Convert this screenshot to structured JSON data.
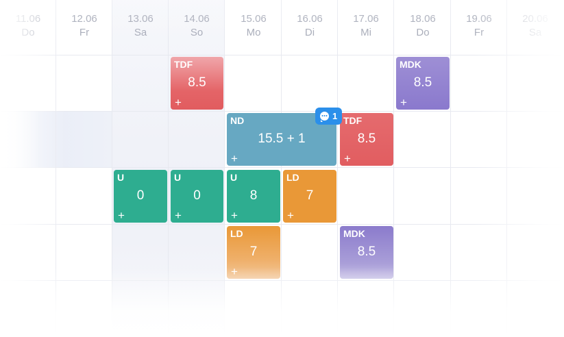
{
  "calendar": {
    "days": [
      {
        "date": "11.06",
        "weekday": "Do"
      },
      {
        "date": "12.06",
        "weekday": "Fr"
      },
      {
        "date": "13.06",
        "weekday": "Sa"
      },
      {
        "date": "14.06",
        "weekday": "So"
      },
      {
        "date": "15.06",
        "weekday": "Mo"
      },
      {
        "date": "16.06",
        "weekday": "Di"
      },
      {
        "date": "17.06",
        "weekday": "Mi"
      },
      {
        "date": "18.06",
        "weekday": "Do"
      },
      {
        "date": "19.06",
        "weekday": "Fr"
      },
      {
        "date": "20.06",
        "weekday": "Sa"
      }
    ]
  },
  "shifts": [
    {
      "code": "TDF",
      "hours": "8.5",
      "plus": "+",
      "color": "#e15d60"
    },
    {
      "code": "MDK",
      "hours": "8.5",
      "plus": "+",
      "color": "#8a79cd"
    },
    {
      "code": "ND",
      "hours": "15.5 + 1",
      "plus": "+",
      "color": "#67a8c2"
    },
    {
      "code": "TDF",
      "hours": "8.5",
      "plus": "+",
      "color": "#e15d60"
    },
    {
      "code": "U",
      "hours": "0",
      "plus": "+",
      "color": "#2ead90"
    },
    {
      "code": "U",
      "hours": "0",
      "plus": "+",
      "color": "#2ead90"
    },
    {
      "code": "U",
      "hours": "8",
      "plus": "+",
      "color": "#2ead90"
    },
    {
      "code": "LD",
      "hours": "7",
      "plus": "+",
      "color": "#e99837"
    },
    {
      "code": "LD",
      "hours": "7",
      "plus": "+",
      "color": "#e99837"
    },
    {
      "code": "MDK",
      "hours": "8.5",
      "plus": "",
      "color": "#8a79cd"
    }
  ],
  "comment_badge": {
    "count": "1",
    "icon": "comment-icon",
    "color": "#2b8fea"
  }
}
